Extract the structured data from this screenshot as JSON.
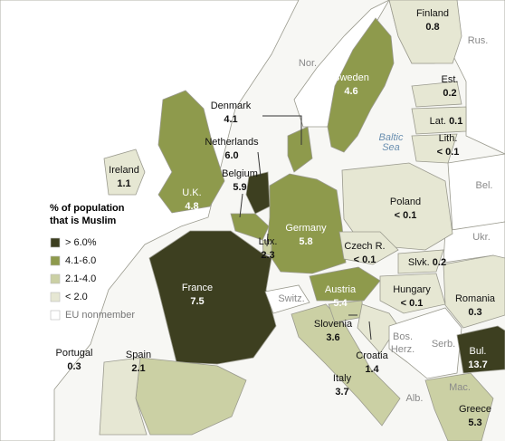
{
  "legend": {
    "title": [
      "% of population",
      "that is Muslim"
    ],
    "items": [
      {
        "label": "> 6.0%",
        "color": "#3d3f20"
      },
      {
        "label": "4.1-6.0",
        "color": "#8e9a4c"
      },
      {
        "label": "2.1-4.0",
        "color": "#cbd0a4"
      },
      {
        "label": "< 2.0",
        "color": "#e6e7d3"
      },
      {
        "label": "EU nonmember",
        "color": "#ffffff"
      }
    ]
  },
  "countries": [
    {
      "name": "Finland",
      "value": "0.8"
    },
    {
      "name": "Est.",
      "value": "0.2"
    },
    {
      "name": "Lat.",
      "value": "0.1"
    },
    {
      "name": "Lith.",
      "value": "< 0.1"
    },
    {
      "name": "Sweden",
      "value": "4.6"
    },
    {
      "name": "Denmark",
      "value": "4.1"
    },
    {
      "name": "Netherlands",
      "value": "6.0"
    },
    {
      "name": "Belgium",
      "value": "5.9"
    },
    {
      "name": "Ireland",
      "value": "1.1"
    },
    {
      "name": "U.K.",
      "value": "4.8"
    },
    {
      "name": "Germany",
      "value": "5.8"
    },
    {
      "name": "Poland",
      "value": "< 0.1"
    },
    {
      "name": "Czech R.",
      "value": "< 0.1"
    },
    {
      "name": "Slvk.",
      "value": "0.2"
    },
    {
      "name": "Lux.",
      "value": "2.3"
    },
    {
      "name": "France",
      "value": "7.5"
    },
    {
      "name": "Austria",
      "value": "5.4"
    },
    {
      "name": "Hungary",
      "value": "< 0.1"
    },
    {
      "name": "Romania",
      "value": "0.3"
    },
    {
      "name": "Slovenia",
      "value": "3.6"
    },
    {
      "name": "Croatia",
      "value": "1.4"
    },
    {
      "name": "Bul.",
      "value": "13.7"
    },
    {
      "name": "Portugal",
      "value": "0.3"
    },
    {
      "name": "Spain",
      "value": "2.1"
    },
    {
      "name": "Italy",
      "value": "3.7"
    },
    {
      "name": "Greece",
      "value": "5.3"
    }
  ],
  "nonmembers": [
    "Nor.",
    "Rus.",
    "Bel.",
    "Ukr.",
    "Switz.",
    "Bos.",
    "Herz.",
    "Serb.",
    "Alb.",
    "Mac."
  ],
  "sea": [
    "Baltic",
    "Sea"
  ]
}
